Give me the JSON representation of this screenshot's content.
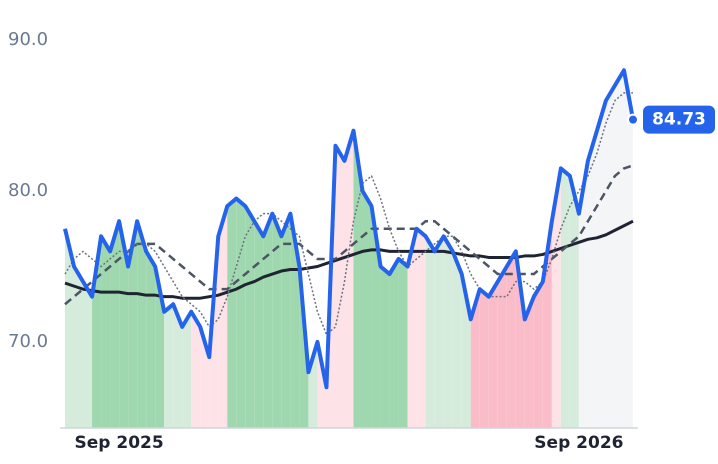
{
  "chart_data": {
    "type": "line",
    "ylim": [
      64.3,
      91
    ],
    "yticks": [
      {
        "value": 70,
        "label": "70.0"
      },
      {
        "value": 80,
        "label": "80.0"
      },
      {
        "value": 90,
        "label": "90.0"
      }
    ],
    "categories": [
      null,
      null,
      null,
      null,
      null,
      null,
      "Sep 2025",
      null,
      null,
      null,
      null,
      null,
      null,
      null,
      null,
      null,
      null,
      null,
      null,
      null,
      null,
      null,
      null,
      null,
      null,
      null,
      null,
      null,
      null,
      null,
      null,
      null,
      null,
      null,
      null,
      null,
      null,
      null,
      null,
      null,
      null,
      null,
      null,
      null,
      null,
      null,
      null,
      null,
      null,
      null,
      null,
      null,
      null,
      null,
      null,
      null,
      null,
      "Sep 2026",
      null,
      null,
      null,
      null,
      null,
      null
    ],
    "series": [
      {
        "color": "#2563eb",
        "style": "solid",
        "width": 4,
        "values": [
          77.5,
          75,
          74,
          73,
          77,
          76,
          78,
          75,
          78,
          76,
          75,
          72,
          72.5,
          71,
          72,
          71,
          69,
          77,
          79,
          79.5,
          79,
          78,
          77,
          78.5,
          77,
          78.5,
          75,
          68,
          70,
          67,
          83,
          82,
          84,
          80,
          79,
          75,
          74.5,
          75.5,
          75,
          77.5,
          77,
          76,
          77,
          76,
          74.5,
          71.5,
          73.5,
          73,
          74,
          75,
          76,
          71.5,
          73,
          74,
          78,
          81.5,
          81,
          78.5,
          82,
          84,
          86,
          87,
          88,
          84.73
        ]
      },
      {
        "color": "#6b7280",
        "style": "dotted",
        "width": 1.5,
        "values": [
          74.5,
          75.5,
          76,
          75.5,
          75,
          75.5,
          76,
          76,
          76.5,
          76.5,
          76,
          75,
          74,
          73,
          72.5,
          72,
          71,
          71.5,
          73,
          75,
          77,
          78,
          78.5,
          78.5,
          78,
          77.5,
          77,
          74.5,
          72,
          70.5,
          71,
          74,
          78,
          80.5,
          81,
          79.5,
          77.5,
          76,
          75,
          75.5,
          76,
          76.5,
          77,
          77,
          76,
          74.5,
          73.5,
          73,
          73,
          73,
          74,
          74,
          73.5,
          74,
          75.5,
          77.5,
          79,
          80,
          81,
          82.5,
          84.5,
          86,
          86.5,
          86.5
        ]
      },
      {
        "color": "#4b5563",
        "style": "dashed",
        "width": 2.5,
        "values": [
          72.5,
          73,
          73.5,
          74,
          74.5,
          75,
          75.5,
          76,
          76.5,
          76.5,
          76.5,
          76,
          75.5,
          75,
          74.5,
          74,
          73.5,
          73.5,
          73.5,
          74,
          74.5,
          75,
          75.5,
          76,
          76.5,
          76.5,
          76.5,
          76,
          75.5,
          75.5,
          75.5,
          76,
          76.5,
          77,
          77.5,
          77.5,
          77.5,
          77.5,
          77.5,
          77.5,
          78,
          78,
          77.5,
          77,
          76.5,
          76,
          75.5,
          75,
          74.5,
          74.5,
          74.5,
          74.5,
          74.5,
          75,
          75.5,
          76,
          76.5,
          77,
          78,
          79,
          80,
          81,
          81.5,
          81.7
        ]
      },
      {
        "color": "#1f2433",
        "style": "solid",
        "width": 3,
        "values": [
          73.9,
          73.7,
          73.5,
          73.4,
          73.3,
          73.3,
          73.3,
          73.2,
          73.2,
          73.1,
          73.1,
          73.0,
          73.0,
          72.9,
          72.9,
          72.9,
          73.0,
          73.1,
          73.3,
          73.5,
          73.8,
          74.0,
          74.3,
          74.5,
          74.7,
          74.8,
          74.8,
          74.9,
          75.0,
          75.2,
          75.4,
          75.6,
          75.8,
          76.0,
          76.1,
          76.1,
          76.0,
          76.0,
          76.0,
          76.0,
          76.0,
          76.0,
          76.0,
          75.9,
          75.8,
          75.7,
          75.7,
          75.6,
          75.6,
          75.6,
          75.6,
          75.7,
          75.7,
          75.8,
          76.0,
          76.2,
          76.4,
          76.6,
          76.8,
          76.9,
          77.1,
          77.4,
          77.7,
          78.0
        ]
      }
    ],
    "band_colors": [
      "#d5ecdc",
      "#d5ecdc",
      "#d5ecdc",
      "#9fd8ae",
      "#9fd8ae",
      "#9fd8ae",
      "#9fd8ae",
      "#9fd8ae",
      "#9fd8ae",
      "#9fd8ae",
      "#9fd8ae",
      "#d5ecdc",
      "#d5ecdc",
      "#d5ecdc",
      "#fde2e8",
      "#fde2e8",
      "#fde2e8",
      "#fde2e8",
      "#9fd8ae",
      "#9fd8ae",
      "#9fd8ae",
      "#9fd8ae",
      "#9fd8ae",
      "#9fd8ae",
      "#9fd8ae",
      "#9fd8ae",
      "#9fd8ae",
      "#d5ecdc",
      "#fde2e8",
      "#fde2e8",
      "#fde2e8",
      "#fde2e8",
      "#9fd8ae",
      "#9fd8ae",
      "#9fd8ae",
      "#9fd8ae",
      "#9fd8ae",
      "#9fd8ae",
      "#fde2e8",
      "#fde2e8",
      "#d5ecdc",
      "#d5ecdc",
      "#d5ecdc",
      "#d5ecdc",
      "#d5ecdc",
      "#f9bcc8",
      "#f9bcc8",
      "#f9bcc8",
      "#f9bcc8",
      "#f9bcc8",
      "#f9bcc8",
      "#f9bcc8",
      "#f9bcc8",
      "#f9bcc8",
      "#fde2e8",
      "#d5ecdc",
      "#d5ecdc",
      "#f4f5f7",
      "#f4f5f7",
      "#f4f5f7",
      "#f4f5f7",
      "#f4f5f7",
      "#f4f5f7",
      "#f4f5f7"
    ]
  }
}
